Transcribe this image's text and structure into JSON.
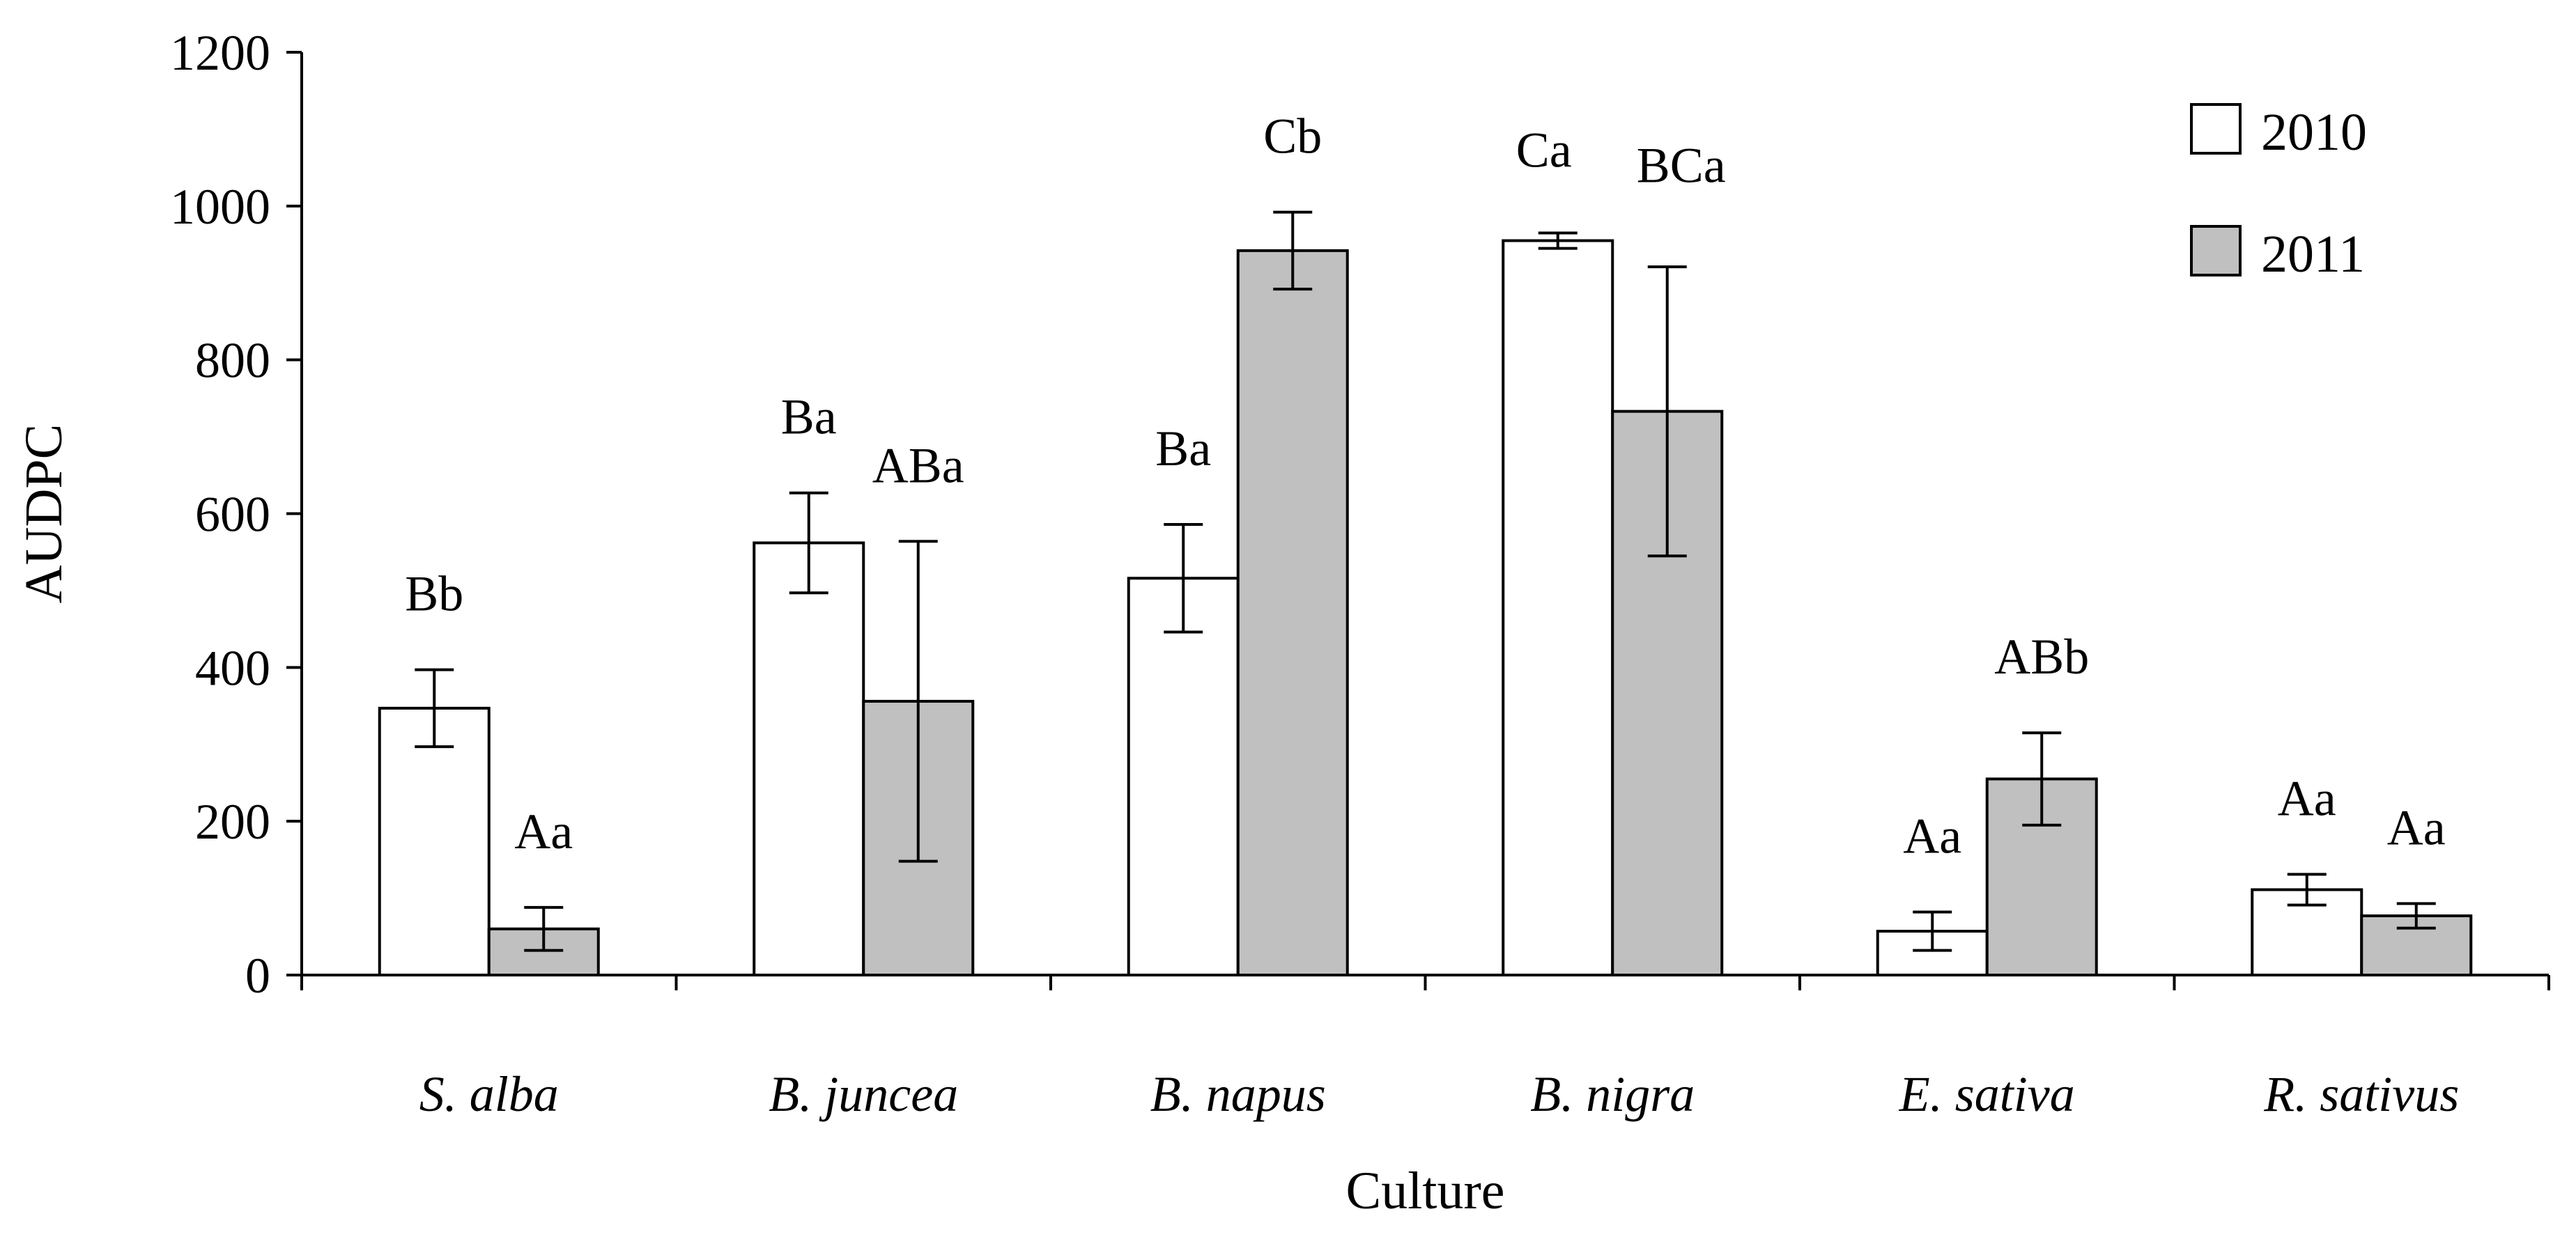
{
  "chart_data": {
    "type": "bar",
    "title": "",
    "xlabel": "Culture",
    "ylabel": "AUDPC",
    "ylim": [
      0,
      1200
    ],
    "yticks": [
      0,
      200,
      400,
      600,
      800,
      1000,
      1200
    ],
    "grid": false,
    "legend_position": "top-right",
    "categories": [
      "S. alba",
      "B. juncea",
      "B. napus",
      "B. nigra",
      "E. sativa",
      "R. sativus"
    ],
    "series": [
      {
        "name": "2010",
        "color": "#ffffff",
        "values": [
          347,
          562,
          516,
          955,
          57,
          111
        ],
        "errors": [
          50,
          65,
          70,
          10,
          25,
          20
        ],
        "labels": [
          "Bb",
          "Ba",
          "Ba",
          "Ca",
          "Aa",
          "Aa"
        ]
      },
      {
        "name": "2011",
        "color": "#c0c0c0",
        "values": [
          60,
          356,
          942,
          733,
          255,
          77
        ],
        "errors": [
          28,
          208,
          50,
          188,
          60,
          16
        ],
        "labels": [
          "Aa",
          "ABa",
          "Cb",
          "BCa",
          "ABb",
          "Aa"
        ]
      }
    ]
  }
}
